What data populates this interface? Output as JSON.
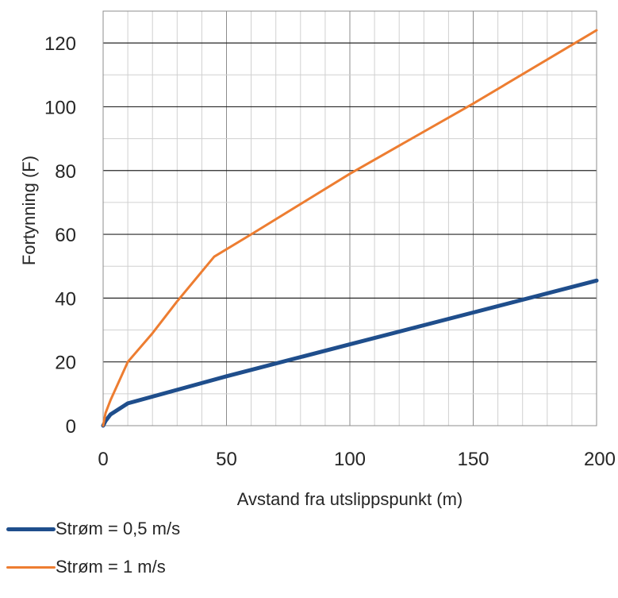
{
  "chart_data": {
    "type": "line",
    "title": "",
    "xlabel": "Avstand fra utslippspunkt (m)",
    "ylabel": "Fortynning (F)",
    "xlim": [
      0,
      200
    ],
    "ylim": [
      0,
      130
    ],
    "x_ticks": [
      "0",
      "50",
      "100",
      "150",
      "200"
    ],
    "y_ticks": [
      "0",
      "20",
      "40",
      "60",
      "80",
      "100",
      "120"
    ],
    "grid": true,
    "legend_position": "bottom-left",
    "series": [
      {
        "name": "Strøm = 0,5 m/s",
        "color": "#1f4e8c",
        "x": [
          0,
          1,
          3,
          10,
          50,
          100,
          150,
          200
        ],
        "y": [
          0,
          1.5,
          3.5,
          7,
          15.5,
          25.5,
          35.5,
          45.5
        ]
      },
      {
        "name": "Strøm = 1 m/s",
        "color": "#ed7d31",
        "x": [
          0,
          1,
          3,
          10,
          20,
          30,
          45,
          60,
          100,
          150,
          200
        ],
        "y": [
          0,
          4,
          8,
          20,
          29,
          39,
          53,
          60,
          79,
          101,
          124
        ]
      }
    ]
  }
}
